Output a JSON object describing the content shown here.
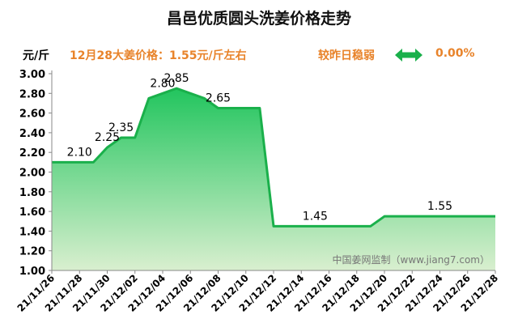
{
  "header": {
    "title": "昌邑优质圆头洗姜价格走势",
    "unit": "元/斤",
    "price_note": "12月28大姜价格：1.55元/斤左右",
    "compare_text": "较昨日稳弱",
    "change_pct": "0.00%",
    "arrow_icon": "left-right-arrow-icon",
    "arrow_color": "#1ab04b"
  },
  "watermark": "中国姜网监制（www.jiang7.com）",
  "chart_data": {
    "type": "area",
    "title": "昌邑优质圆头洗姜价格走势",
    "ylabel": "元/斤",
    "xlabel": "",
    "ylim": [
      1.0,
      3.0
    ],
    "ytick_labels": [
      "1.00",
      "1.20",
      "1.40",
      "1.60",
      "1.80",
      "2.00",
      "2.20",
      "2.40",
      "2.60",
      "2.80",
      "3.00"
    ],
    "xtick_labels": [
      "21/11/26",
      "21/11/28",
      "21/11/30",
      "21/12/02",
      "21/12/04",
      "21/12/06",
      "21/12/08",
      "21/12/10",
      "21/12/12",
      "21/12/14",
      "21/12/16",
      "21/12/18",
      "21/12/20",
      "21/12/22",
      "21/12/24",
      "21/12/26",
      "21/12/28"
    ],
    "x": [
      "21/11/26",
      "21/11/27",
      "21/11/28",
      "21/11/29",
      "21/11/30",
      "21/12/01",
      "21/12/02",
      "21/12/03",
      "21/12/04",
      "21/12/05",
      "21/12/06",
      "21/12/07",
      "21/12/08",
      "21/12/09",
      "21/12/10",
      "21/12/11",
      "21/12/12",
      "21/12/13",
      "21/12/14",
      "21/12/15",
      "21/12/16",
      "21/12/17",
      "21/12/18",
      "21/12/19",
      "21/12/20",
      "21/12/21",
      "21/12/22",
      "21/12/23",
      "21/12/24",
      "21/12/25",
      "21/12/26",
      "21/12/27",
      "21/12/28"
    ],
    "values": [
      2.1,
      2.1,
      2.1,
      2.1,
      2.25,
      2.35,
      2.35,
      2.75,
      2.8,
      2.85,
      2.8,
      2.75,
      2.65,
      2.65,
      2.65,
      2.65,
      1.45,
      1.45,
      1.45,
      1.45,
      1.45,
      1.45,
      1.45,
      1.45,
      1.55,
      1.55,
      1.55,
      1.55,
      1.55,
      1.55,
      1.55,
      1.55,
      1.55
    ],
    "data_labels": [
      {
        "x": "21/11/28",
        "label": "2.10"
      },
      {
        "x": "21/11/30",
        "label": "2.25"
      },
      {
        "x": "21/12/01",
        "label": "2.35"
      },
      {
        "x": "21/12/04",
        "label": "2.80"
      },
      {
        "x": "21/12/05",
        "label": "2.85"
      },
      {
        "x": "21/12/08",
        "label": "2.65"
      },
      {
        "x": "21/12/15",
        "label": "1.45"
      },
      {
        "x": "21/12/24",
        "label": "1.55"
      }
    ],
    "line_color": "#1ab04b",
    "fill_top_color": "#22c55e",
    "fill_bottom_color": "#d9efcf",
    "grid": false
  }
}
